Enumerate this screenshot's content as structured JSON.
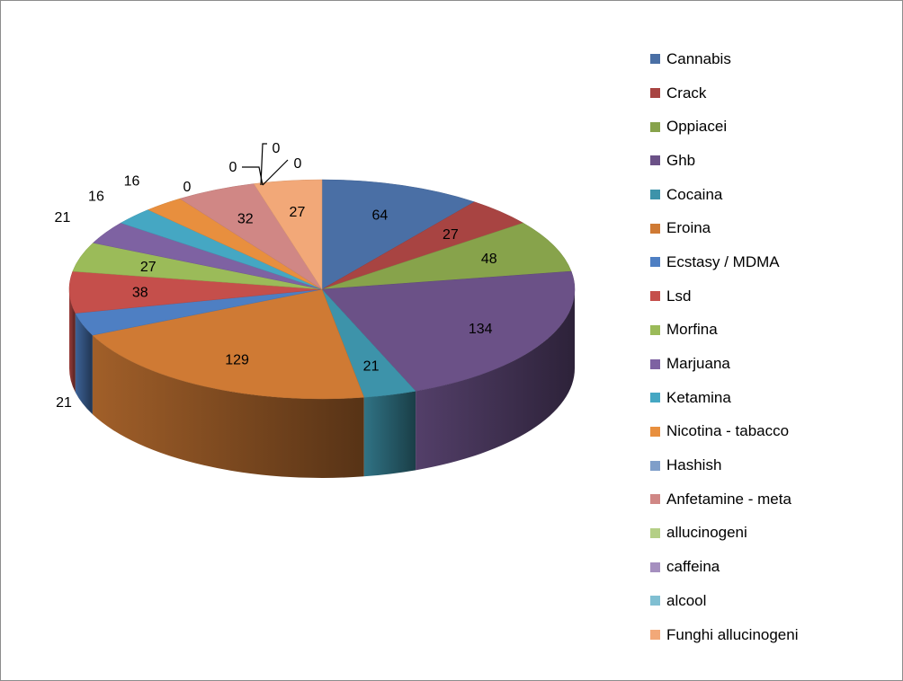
{
  "chart_data": {
    "type": "pie",
    "style": "3d",
    "title": "",
    "legend_position": "right",
    "categories": [
      "Cannabis",
      "Crack",
      "Oppiacei",
      "Ghb",
      "Cocaina",
      "Eroina",
      "Ecstasy / MDMA",
      "Lsd",
      "Morfina",
      "Marjuana",
      "Ketamina",
      "Nicotina - tabacco",
      "Hashish",
      "Anfetamine - meta",
      "allucinogeni",
      "caffeina",
      "alcool",
      "Funghi allucinogeni"
    ],
    "values": [
      64,
      27,
      48,
      134,
      21,
      129,
      21,
      38,
      27,
      21,
      16,
      16,
      0,
      32,
      0,
      0,
      0,
      27
    ],
    "colors": [
      "#4a6fa5",
      "#a84442",
      "#87a34b",
      "#6b5187",
      "#3d93aa",
      "#cf7a34",
      "#4e7fc3",
      "#c54f4b",
      "#9bbb59",
      "#7e62a2",
      "#45a7c3",
      "#e88f3e",
      "#7f9ec9",
      "#d08785",
      "#b4cf86",
      "#a58fbf",
      "#80bfd2",
      "#f2a878"
    ]
  }
}
